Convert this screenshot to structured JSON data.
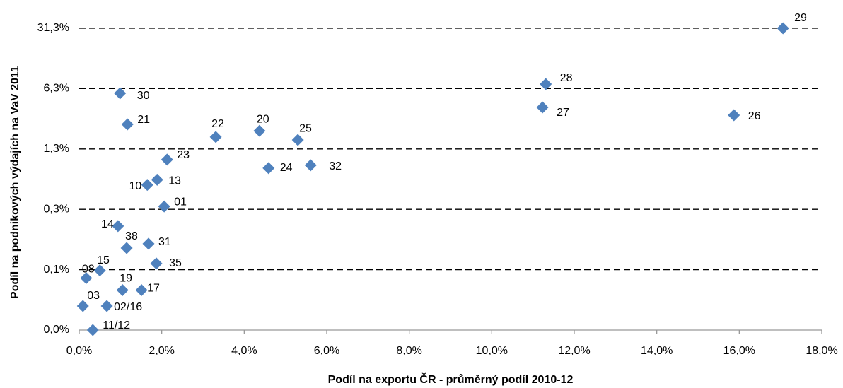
{
  "chart_data": {
    "type": "scatter",
    "x_label": "Podíl na exportu ČR - průměrný podíl 2010-12",
    "y_label": "Podíl na podnikových výdajích na VaV 2011",
    "color": "#4f81bd",
    "log_y": true,
    "grid": true,
    "labels": [
      "29",
      "28",
      "27",
      "26",
      "30",
      "21",
      "22",
      "20",
      "25",
      "24",
      "32",
      "23",
      "13",
      "10",
      "01",
      "14",
      "31",
      "38",
      "35",
      "15",
      "08",
      "19",
      "17",
      "03",
      "02/16",
      "11/12"
    ],
    "x": [
      17.06,
      11.31,
      11.23,
      15.87,
      0.99,
      1.17,
      3.31,
      4.37,
      5.3,
      4.59,
      5.61,
      2.13,
      1.89,
      1.65,
      2.06,
      0.94,
      1.68,
      1.15,
      1.87,
      0.5,
      0.17,
      1.05,
      1.51,
      0.09,
      0.67,
      0.33
    ],
    "values": [
      31.25,
      7.05,
      3.79,
      3.08,
      5.52,
      2.41,
      1.72,
      2.03,
      1.59,
      0.75,
      0.81,
      0.94,
      0.55,
      0.48,
      0.27,
      0.16,
      0.1,
      0.089,
      0.059,
      0.049,
      0.04,
      0.029,
      0.029,
      0.019,
      0.019,
      0.01
    ],
    "xlim": [
      0,
      18
    ],
    "xticks": [
      {
        "value": 0,
        "label": "0,0%"
      },
      {
        "value": 2,
        "label": "2,0%"
      },
      {
        "value": 4,
        "label": "4,0%"
      },
      {
        "value": 6,
        "label": "6,0%"
      },
      {
        "value": 8,
        "label": "8,0%"
      },
      {
        "value": 10,
        "label": "10,0%"
      },
      {
        "value": 12,
        "label": "12,0%"
      },
      {
        "value": 14,
        "label": "14,0%"
      },
      {
        "value": 16,
        "label": "16,0%"
      },
      {
        "value": 18,
        "label": "18,0%"
      }
    ],
    "ylim": [
      0.01,
      31.25
    ],
    "yticks": [
      {
        "value": 0.01,
        "label": "0,0%"
      },
      {
        "value": 0.05,
        "label": "0,1%"
      },
      {
        "value": 0.25,
        "label": "0,3%"
      },
      {
        "value": 1.25,
        "label": "1,3%"
      },
      {
        "value": 6.25,
        "label": "6,3%"
      },
      {
        "value": 31.25,
        "label": "31,3%"
      }
    ]
  }
}
